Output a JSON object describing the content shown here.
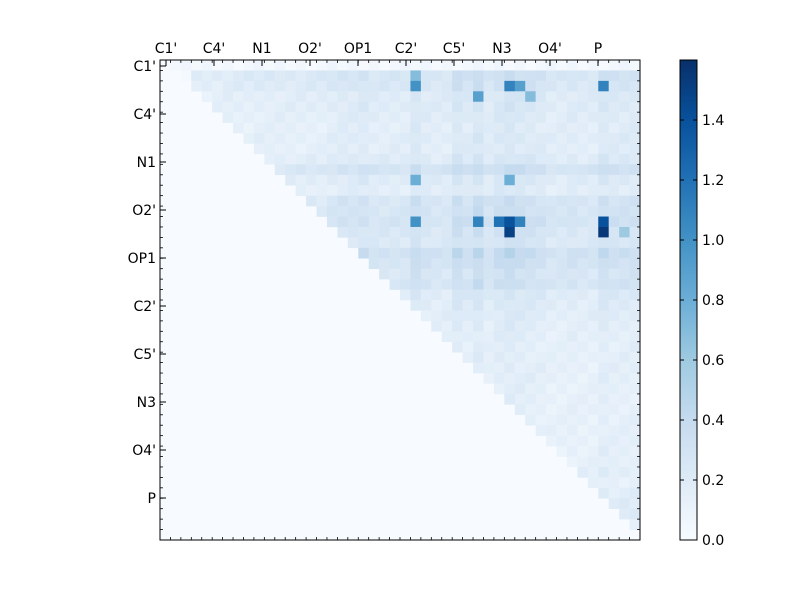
{
  "chart_data": {
    "type": "heatmap",
    "title": "",
    "xlabel": "",
    "ylabel": "",
    "n": 46,
    "x_tick_labels": [
      "C1'",
      "C4'",
      "N1",
      "O2'",
      "OP1",
      "C2'",
      "C5'",
      "N3",
      "O4'",
      "P"
    ],
    "y_tick_labels": [
      "C1'",
      "C4'",
      "N1",
      "O2'",
      "OP1",
      "C2'",
      "C5'",
      "N3",
      "O4'",
      "P"
    ],
    "colorbar": {
      "min": 0.0,
      "max": 1.6,
      "ticks": [
        "0.0",
        "0.2",
        "0.4",
        "0.6",
        "0.8",
        "1.0",
        "1.2",
        "1.4"
      ],
      "colormap": "Blues"
    },
    "row_strengths": [
      0,
      0.3,
      0.25,
      0.15,
      0.15,
      0.12,
      0.1,
      0.12,
      0.1,
      0.15,
      0.35,
      0.15,
      0.1,
      0.3,
      0.3,
      0.35,
      0.25,
      0.2,
      0.45,
      0.35,
      0.25,
      0.3,
      0.15,
      0.12,
      0.1,
      0.08,
      0.07,
      0.06,
      0.06,
      0.06,
      0.06,
      0.05,
      0.05,
      0.05,
      0.05,
      0.05,
      0.05,
      0.05,
      0.05,
      0.08,
      0.05,
      0.08,
      0.1,
      0.12,
      0.08,
      0
    ],
    "col_strengths": [
      0,
      0,
      0,
      0.1,
      0.1,
      0.1,
      0.12,
      0.12,
      0.12,
      0.15,
      0.15,
      0.15,
      0.15,
      0.15,
      0.15,
      0.15,
      0.2,
      0.25,
      0.25,
      0.3,
      0.2,
      0.2,
      0.2,
      0.2,
      0.4,
      0.25,
      0.2,
      0.2,
      0.45,
      0.3,
      0.5,
      0.25,
      0.4,
      0.5,
      0.4,
      0.35,
      0.3,
      0.2,
      0.2,
      0.25,
      0.2,
      0.2,
      0.4,
      0.3,
      0.3,
      0.3
    ],
    "highlights": [
      {
        "row": 1,
        "col": 24,
        "value": 0.7
      },
      {
        "row": 2,
        "col": 24,
        "value": 1.0
      },
      {
        "row": 2,
        "col": 33,
        "value": 1.1
      },
      {
        "row": 2,
        "col": 34,
        "value": 0.9
      },
      {
        "row": 2,
        "col": 42,
        "value": 1.1
      },
      {
        "row": 3,
        "col": 30,
        "value": 0.9
      },
      {
        "row": 3,
        "col": 35,
        "value": 0.7
      },
      {
        "row": 11,
        "col": 24,
        "value": 0.8
      },
      {
        "row": 11,
        "col": 33,
        "value": 0.8
      },
      {
        "row": 15,
        "col": 24,
        "value": 1.0
      },
      {
        "row": 15,
        "col": 30,
        "value": 1.1
      },
      {
        "row": 15,
        "col": 32,
        "value": 1.2
      },
      {
        "row": 15,
        "col": 33,
        "value": 1.4
      },
      {
        "row": 15,
        "col": 34,
        "value": 1.1
      },
      {
        "row": 15,
        "col": 42,
        "value": 1.4
      },
      {
        "row": 16,
        "col": 33,
        "value": 1.5
      },
      {
        "row": 16,
        "col": 42,
        "value": 1.55
      },
      {
        "row": 16,
        "col": 44,
        "value": 0.6
      }
    ]
  }
}
